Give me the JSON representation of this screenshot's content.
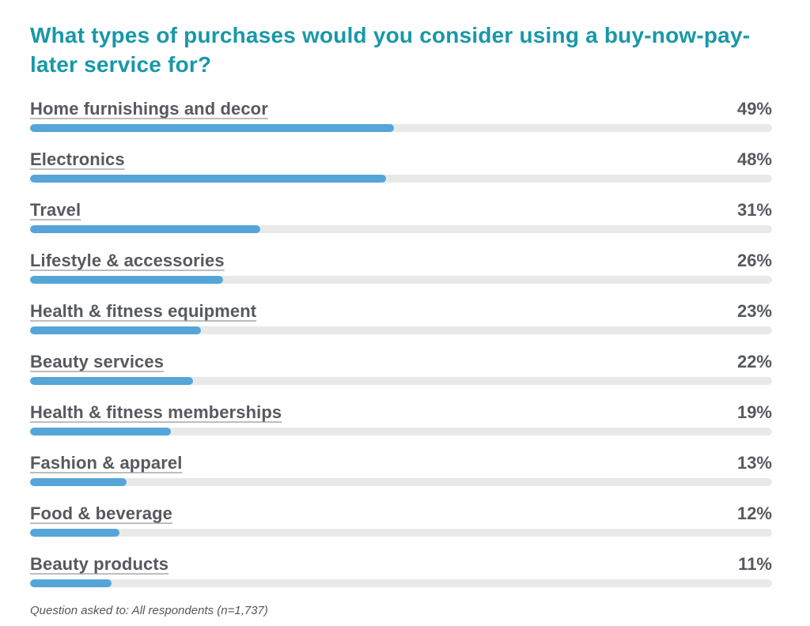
{
  "chart_data": {
    "type": "bar",
    "orientation": "horizontal",
    "title": "What types of purchases would you consider using a buy-now-pay-later service for?",
    "categories": [
      "Home furnishings and decor",
      "Electronics",
      "Travel",
      "Lifestyle & accessories",
      "Health & fitness equipment",
      "Beauty services",
      "Health & fitness memberships",
      "Fashion & apparel",
      "Food & beverage",
      "Beauty products"
    ],
    "values": [
      49,
      48,
      31,
      26,
      23,
      22,
      19,
      13,
      12,
      11
    ],
    "value_labels": [
      "49%",
      "48%",
      "31%",
      "26%",
      "23%",
      "22%",
      "19%",
      "13%",
      "12%",
      "11%"
    ],
    "unit": "%",
    "xlim": [
      0,
      100
    ],
    "grid": false,
    "legend": false,
    "footnote": "Question asked to: All respondents (n=1,737)",
    "colors": {
      "title": "#1898A8",
      "bar_fill": "#55A5D8",
      "bar_track": "#E9E9EA",
      "label": "#56595E",
      "footnote": "#565656"
    }
  }
}
